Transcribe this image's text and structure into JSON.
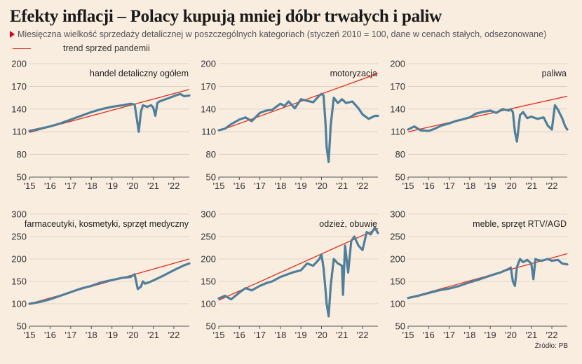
{
  "title": "Efekty inflacji – Polacy kupują mniej dóbr trwałych i paliw",
  "subtitle": "Miesięczna wielkość sprzedaży detalicznej w poszczególnych kategoriach (styczeń 2010 = 100, dane w cenach stałych, odsezonowane)",
  "legend": {
    "trend_label": "trend sprzed pandemii"
  },
  "source": "Źródło: PB",
  "colors": {
    "series": "#4f7f9a",
    "trend": "#e0301e",
    "background": "#f9ede0",
    "accent_marker": "#d6001c"
  },
  "chart_data": [
    {
      "type": "line",
      "title": "handel detaliczny ogółem",
      "x_ticks": [
        "'15",
        "'16",
        "'17",
        "'18",
        "'19",
        "'20",
        "'21",
        "'22"
      ],
      "x_tick_values": [
        2015,
        2016,
        2017,
        2018,
        2019,
        2020,
        2021,
        2022
      ],
      "xlim": [
        2015,
        2022.75
      ],
      "ylim": [
        50,
        200
      ],
      "y_ticks": [
        "200",
        "170",
        "140",
        "110",
        "80",
        "50"
      ],
      "y_tick_values": [
        200,
        170,
        140,
        110,
        80,
        50
      ],
      "series": [
        {
          "x": [
            2015,
            2015.5,
            2016,
            2016.5,
            2017,
            2017.5,
            2018,
            2018.5,
            2019,
            2019.5,
            2019.9,
            2020.1,
            2020.2,
            2020.3,
            2020.4,
            2020.5,
            2020.7,
            2020.9,
            2021.0,
            2021.1,
            2021.2,
            2021.3,
            2021.5,
            2021.7,
            2022.0,
            2022.3,
            2022.5,
            2022.75
          ],
          "y": [
            111,
            114,
            117,
            121,
            126,
            131,
            136,
            140,
            143,
            145,
            147,
            146,
            128,
            110,
            136,
            145,
            143,
            145,
            142,
            131,
            148,
            150,
            152,
            154,
            157,
            160,
            157,
            158
          ]
        }
      ],
      "trend": {
        "x": [
          2015,
          2022.75
        ],
        "y": [
          109,
          166
        ],
        "from_x": 2020
      }
    },
    {
      "type": "line",
      "title": "motoryzacja",
      "x_ticks": [
        "'15",
        "'16",
        "'17",
        "'18",
        "'19",
        "'20",
        "'21",
        "'22"
      ],
      "x_tick_values": [
        2015,
        2016,
        2017,
        2018,
        2019,
        2020,
        2021,
        2022
      ],
      "xlim": [
        2015,
        2022.75
      ],
      "ylim": [
        50,
        200
      ],
      "y_ticks": [
        "200",
        "170",
        "140",
        "110",
        "80",
        "50"
      ],
      "y_tick_values": [
        200,
        170,
        140,
        110,
        80,
        50
      ],
      "series": [
        {
          "x": [
            2015,
            2015.3,
            2015.6,
            2016,
            2016.3,
            2016.6,
            2017,
            2017.3,
            2017.6,
            2018,
            2018.2,
            2018.4,
            2018.7,
            2019,
            2019.3,
            2019.6,
            2019.9,
            2020.0,
            2020.1,
            2020.2,
            2020.25,
            2020.35,
            2020.45,
            2020.6,
            2020.8,
            2021.0,
            2021.2,
            2021.5,
            2021.8,
            2022.0,
            2022.3,
            2022.6,
            2022.75
          ],
          "y": [
            112,
            114,
            120,
            126,
            129,
            124,
            135,
            138,
            139,
            147,
            144,
            150,
            141,
            153,
            151,
            149,
            158,
            160,
            158,
            120,
            90,
            70,
            118,
            155,
            148,
            153,
            148,
            150,
            141,
            133,
            127,
            131,
            131
          ]
        }
      ],
      "trend": {
        "x": [
          2015,
          2022.75
        ],
        "y": [
          111,
          187
        ],
        "from_x": 2019.3
      }
    },
    {
      "type": "line",
      "title": "paliwa",
      "x_ticks": [
        "'15",
        "'16",
        "'17",
        "'18",
        "'19",
        "'20",
        "'21",
        "'22"
      ],
      "x_tick_values": [
        2015,
        2016,
        2017,
        2018,
        2019,
        2020,
        2021,
        2022
      ],
      "xlim": [
        2015,
        2022.75
      ],
      "ylim": [
        50,
        200
      ],
      "y_ticks": [
        "200",
        "170",
        "140",
        "110",
        "80",
        "50"
      ],
      "y_tick_values": [
        200,
        170,
        140,
        110,
        80,
        50
      ],
      "series": [
        {
          "x": [
            2015,
            2015.3,
            2015.6,
            2016,
            2016.3,
            2016.6,
            2017,
            2017.3,
            2017.6,
            2018,
            2018.3,
            2018.6,
            2019,
            2019.3,
            2019.6,
            2019.9,
            2020.0,
            2020.1,
            2020.2,
            2020.3,
            2020.45,
            2020.6,
            2020.8,
            2021.0,
            2021.3,
            2021.6,
            2021.8,
            2022.0,
            2022.15,
            2022.3,
            2022.5,
            2022.65,
            2022.75
          ],
          "y": [
            113,
            117,
            112,
            111,
            114,
            118,
            121,
            124,
            126,
            129,
            134,
            136,
            138,
            135,
            140,
            138,
            140,
            136,
            110,
            97,
            132,
            136,
            128,
            130,
            127,
            129,
            118,
            113,
            145,
            139,
            128,
            117,
            113
          ]
        }
      ],
      "trend": {
        "x": [
          2015,
          2022.75
        ],
        "y": [
          110,
          157
        ],
        "from_x": 2019.5
      }
    },
    {
      "type": "line",
      "title": "farmaceutyki, kosmetyki, sprzęt medyczny",
      "x_ticks": [
        "'15",
        "'16",
        "'17",
        "'18",
        "'19",
        "'20",
        "'21",
        "'22"
      ],
      "x_tick_values": [
        2015,
        2016,
        2017,
        2018,
        2019,
        2020,
        2021,
        2022
      ],
      "xlim": [
        2015,
        2022.75
      ],
      "ylim": [
        50,
        300
      ],
      "y_ticks": [
        "300",
        "250",
        "200",
        "150",
        "100",
        "50"
      ],
      "y_tick_values": [
        300,
        250,
        200,
        150,
        100,
        50
      ],
      "series": [
        {
          "x": [
            2015,
            2015.5,
            2016,
            2016.5,
            2017,
            2017.5,
            2018,
            2018.5,
            2019,
            2019.5,
            2019.9,
            2020.1,
            2020.25,
            2020.4,
            2020.5,
            2020.6,
            2020.8,
            2021.0,
            2021.5,
            2022.0,
            2022.5,
            2022.75
          ],
          "y": [
            100,
            104,
            110,
            118,
            126,
            134,
            140,
            148,
            153,
            158,
            160,
            166,
            133,
            138,
            150,
            145,
            148,
            152,
            163,
            175,
            186,
            190
          ]
        }
      ],
      "trend": {
        "x": [
          2015,
          2022.75
        ],
        "y": [
          100,
          200
        ],
        "from_x": 2020
      }
    },
    {
      "type": "line",
      "title": "odzież, obuwie",
      "x_ticks": [
        "'15",
        "'16",
        "'17",
        "'18",
        "'19",
        "'20",
        "'21",
        "'22"
      ],
      "x_tick_values": [
        2015,
        2016,
        2017,
        2018,
        2019,
        2020,
        2021,
        2022
      ],
      "xlim": [
        2015,
        2022.75
      ],
      "ylim": [
        50,
        300
      ],
      "y_ticks": [
        "300",
        "250",
        "200",
        "150",
        "100",
        "50"
      ],
      "y_tick_values": [
        300,
        250,
        200,
        150,
        100,
        50
      ],
      "series": [
        {
          "x": [
            2015,
            2015.3,
            2015.6,
            2016,
            2016.3,
            2016.6,
            2017,
            2017.3,
            2017.6,
            2018,
            2018.3,
            2018.6,
            2019,
            2019.3,
            2019.6,
            2019.9,
            2020.0,
            2020.1,
            2020.2,
            2020.25,
            2020.35,
            2020.45,
            2020.6,
            2020.8,
            2021.0,
            2021.05,
            2021.15,
            2021.3,
            2021.45,
            2021.6,
            2021.8,
            2022.0,
            2022.2,
            2022.4,
            2022.6,
            2022.75
          ],
          "y": [
            112,
            118,
            110,
            125,
            135,
            130,
            140,
            146,
            150,
            160,
            165,
            170,
            175,
            190,
            185,
            200,
            210,
            180,
            130,
            100,
            72,
            140,
            200,
            190,
            185,
            120,
            230,
            170,
            240,
            250,
            230,
            220,
            260,
            255,
            270,
            258
          ]
        }
      ],
      "trend": {
        "x": [
          2015,
          2022.75
        ],
        "y": [
          108,
          268
        ],
        "from_x": 2019.3
      }
    },
    {
      "type": "line",
      "title": "meble, sprzęt RTV/AGD",
      "x_ticks": [
        "'15",
        "'16",
        "'17",
        "'18",
        "'19",
        "'20",
        "'21",
        "'22"
      ],
      "x_tick_values": [
        2015,
        2016,
        2017,
        2018,
        2019,
        2020,
        2021,
        2022
      ],
      "xlim": [
        2015,
        2022.75
      ],
      "ylim": [
        50,
        300
      ],
      "y_ticks": [
        "300",
        "250",
        "200",
        "150",
        "100",
        "50"
      ],
      "y_tick_values": [
        300,
        250,
        200,
        150,
        100,
        50
      ],
      "series": [
        {
          "x": [
            2015,
            2015.5,
            2016,
            2016.5,
            2017,
            2017.5,
            2018,
            2018.5,
            2019,
            2019.5,
            2019.9,
            2020.0,
            2020.1,
            2020.2,
            2020.3,
            2020.45,
            2020.6,
            2020.8,
            2021.0,
            2021.1,
            2021.2,
            2021.3,
            2021.5,
            2021.8,
            2022.0,
            2022.3,
            2022.5,
            2022.75
          ],
          "y": [
            113,
            118,
            124,
            130,
            134,
            140,
            148,
            155,
            163,
            170,
            178,
            181,
            150,
            140,
            182,
            200,
            193,
            198,
            190,
            155,
            200,
            198,
            196,
            200,
            196,
            198,
            190,
            188
          ]
        }
      ],
      "trend": {
        "x": [
          2015,
          2022.75
        ],
        "y": [
          113,
          212
        ],
        "from_x": 2020
      }
    }
  ]
}
